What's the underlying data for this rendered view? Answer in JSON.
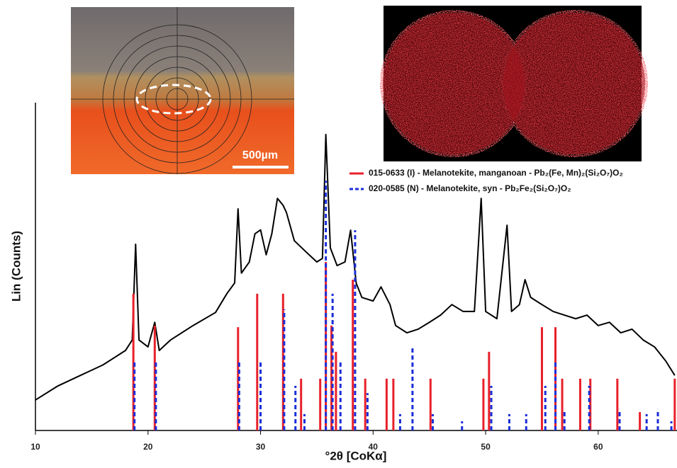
{
  "chart_data": {
    "type": "line",
    "xlabel": "°2θ [CoKα]",
    "ylabel": "Lin (Counts)",
    "xlim": [
      10,
      67
    ],
    "ylim": [
      0,
      100
    ],
    "xticks": [
      10,
      20,
      30,
      40,
      50,
      60
    ],
    "series": [
      {
        "color": "#000000",
        "style": "line",
        "x": [
          10,
          12,
          14,
          16,
          18,
          18.6,
          18.9,
          19.2,
          20,
          20.6,
          21,
          22,
          24,
          26,
          27,
          27.7,
          28,
          28.3,
          29,
          29.5,
          30,
          30.5,
          31,
          31.5,
          32,
          32.3,
          33,
          34,
          35,
          35.5,
          35.8,
          36.2,
          36.8,
          37.5,
          38,
          38.5,
          39,
          40,
          40.7,
          41.5,
          42,
          43,
          44,
          45,
          46,
          47,
          48,
          49,
          49.6,
          50,
          51,
          51.9,
          52.3,
          53,
          53.5,
          54,
          55,
          56,
          57,
          58,
          59,
          60,
          61,
          62,
          63,
          64,
          65,
          66,
          66.8
        ],
        "values": [
          9.3,
          13.6,
          16.8,
          20,
          24.4,
          27.6,
          56.8,
          27.6,
          25.5,
          33,
          24.4,
          27.6,
          32,
          36,
          41.7,
          45,
          67.6,
          48,
          51.4,
          60,
          61.2,
          53.6,
          60,
          70.8,
          68.7,
          66.5,
          57.9,
          54.6,
          51.4,
          52.5,
          90.3,
          55.7,
          50.3,
          51.4,
          61.1,
          44.9,
          40.6,
          39.5,
          43.8,
          38.4,
          32,
          29.8,
          30.9,
          33,
          35.2,
          38.4,
          36.3,
          36.3,
          70.8,
          36.3,
          34.1,
          62.6,
          36.3,
          38.4,
          46,
          40.6,
          38.4,
          36.3,
          35.2,
          34.1,
          35.2,
          32,
          33,
          29.8,
          30.9,
          27.6,
          25.5,
          21.2,
          16.8
        ]
      },
      {
        "name": "015-0633 (I) - Melanotekite, manganoan - Pb₂(Fe, Mn)₂(Si₂O₇)O₂",
        "color": "#e8202a",
        "style": "stick",
        "x": [
          18.7,
          20.6,
          28,
          29.7,
          32,
          33.6,
          35.3,
          35.8,
          36.3,
          36.7,
          38.2,
          39.3,
          41.2,
          41.8,
          45.1,
          49.8,
          50.3,
          55,
          56.2,
          56.8,
          58.4,
          59.3,
          61.7,
          63.7,
          66.8
        ],
        "values": [
          41.7,
          32,
          31.5,
          41.7,
          41.7,
          15.8,
          15.8,
          51.4,
          32,
          24,
          46,
          15.8,
          15.8,
          15.8,
          15.8,
          15.8,
          24,
          31.5,
          31.5,
          15.8,
          15.8,
          15.8,
          15.8,
          5.6,
          15.8
        ]
      },
      {
        "name": "020-0585 (N) - Melanotekite, syn - Pb₂Fe₂(Si₂O₇)O₂",
        "color": "#1a2ed8",
        "style": "dashed-stick",
        "x": [
          18.8,
          20.7,
          28.1,
          30,
          32.1,
          33.1,
          33.9,
          35.8,
          36.4,
          37.1,
          38.4,
          39.5,
          42.4,
          43.5,
          45.3,
          47.9,
          50.5,
          52.1,
          53.6,
          55.3,
          56.2,
          57,
          59.2,
          61.9,
          64.3,
          65.3,
          66.5
        ],
        "values": [
          21.6,
          21.6,
          21.6,
          21.6,
          36.9,
          13.6,
          5,
          76.2,
          41.7,
          21.6,
          61.1,
          11.4,
          5,
          25.3,
          5,
          2.8,
          13.6,
          5,
          5,
          13.6,
          21.6,
          6.5,
          13.6,
          6.5,
          5,
          6.5,
          2.8
        ]
      }
    ]
  },
  "insets": {
    "scale_bar": "500µm"
  }
}
